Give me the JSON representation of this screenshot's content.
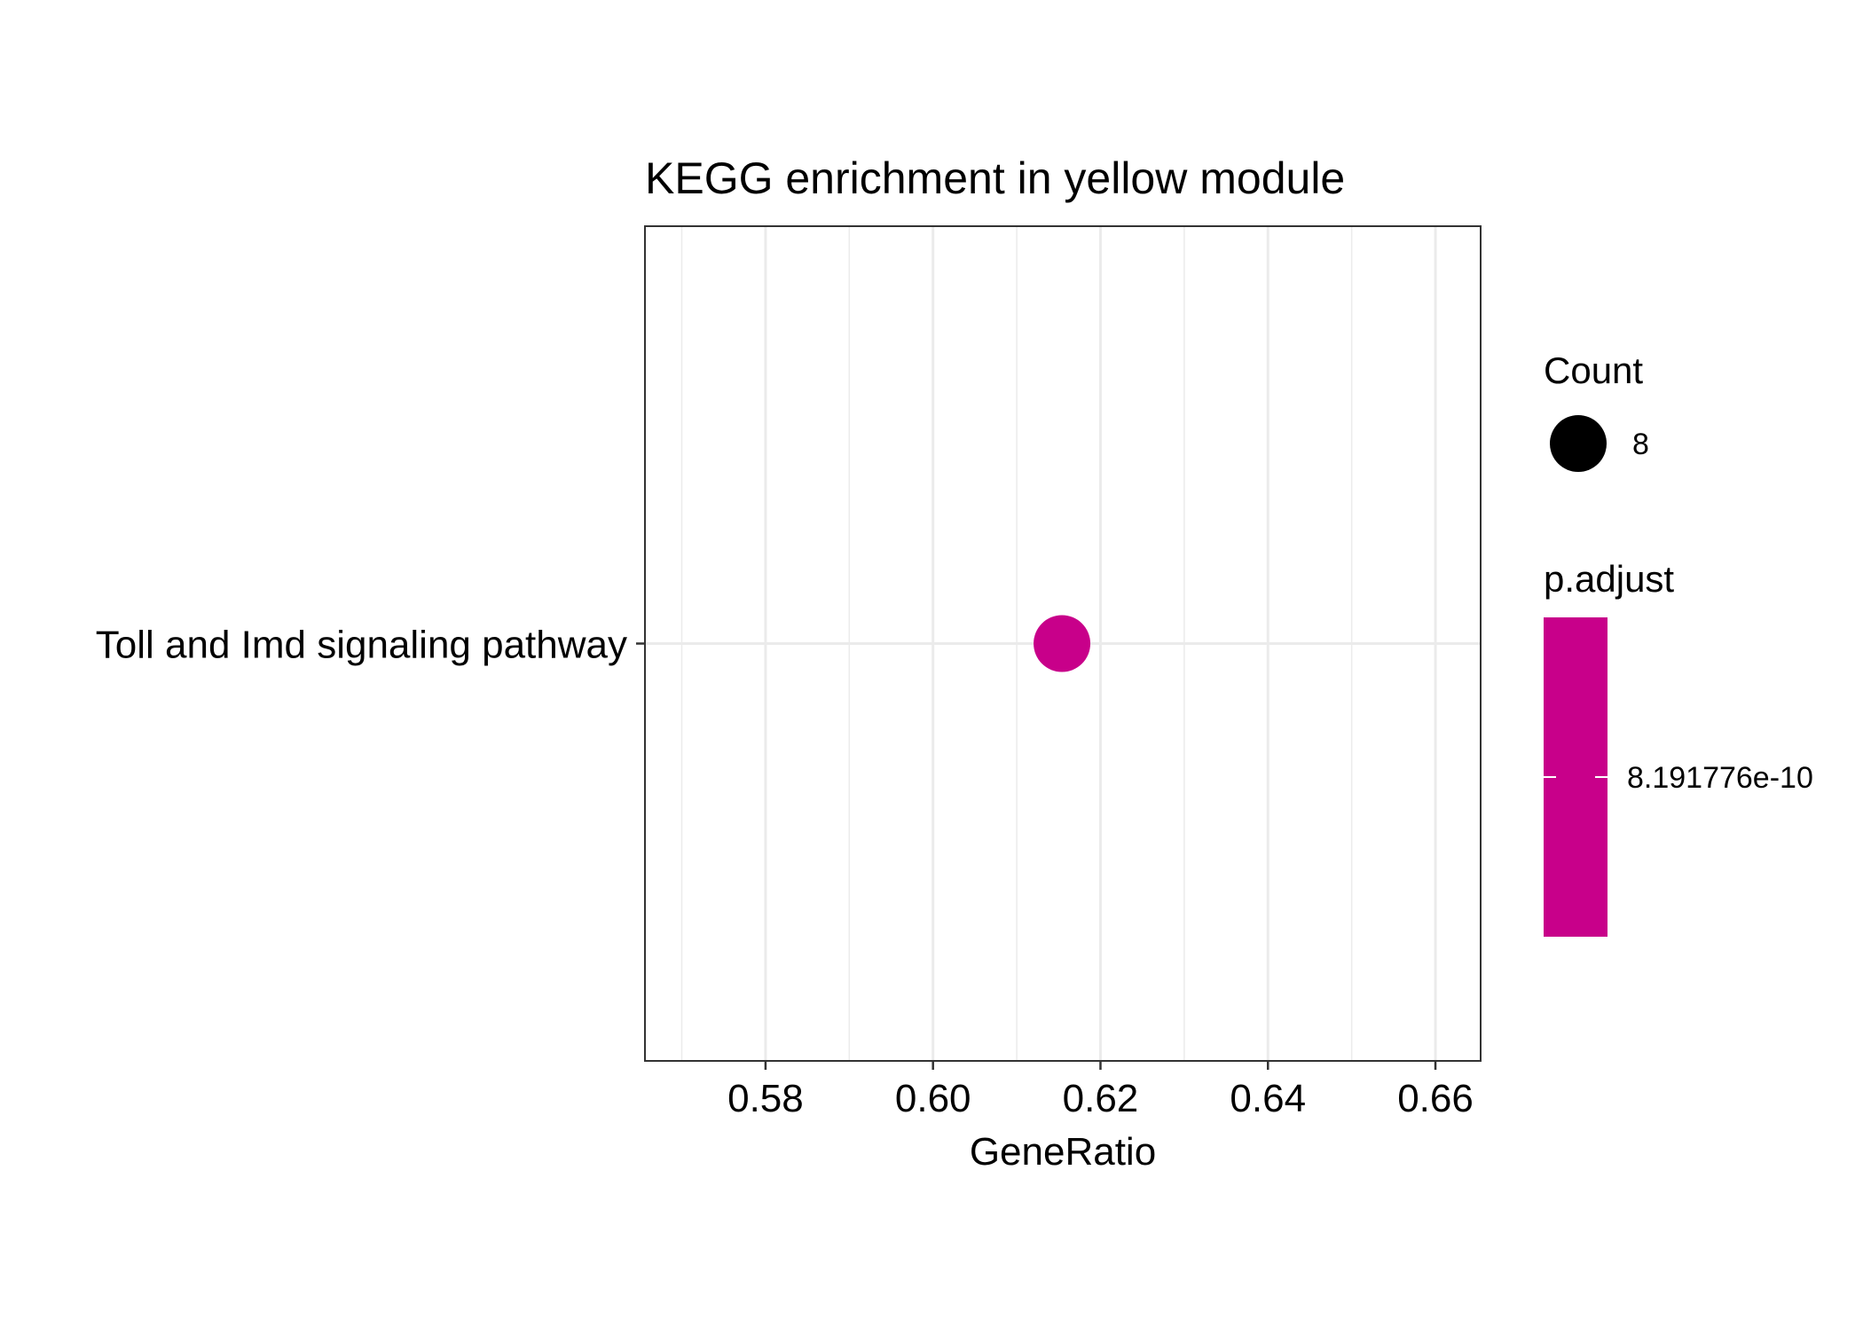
{
  "chart_data": {
    "type": "scatter",
    "title": "KEGG enrichment in yellow module",
    "xlabel": "GeneRatio",
    "ylabel": "",
    "categories": [
      "Toll and Imd signaling pathway"
    ],
    "xlim": [
      0.5656,
      0.6654
    ],
    "xticks": [
      0.58,
      0.6,
      0.62,
      0.64,
      0.66
    ],
    "xtick_labels": [
      "0.58",
      "0.60",
      "0.62",
      "0.64",
      "0.66"
    ],
    "grid": true,
    "points": [
      {
        "category": "Toll and Imd signaling pathway",
        "x": 0.6154,
        "count": 8,
        "p_adjust": 8.191776e-10
      }
    ],
    "legend_position": "right",
    "legend": {
      "size_title": "Count",
      "size_labels": [
        "8"
      ],
      "color_title": "p.adjust",
      "color_labels": [
        "8.191776e-10"
      ]
    },
    "colors": {
      "point": "#C8008A",
      "colorbar": "#C8008A",
      "grid": "#EBEBEB",
      "frame": "#333333"
    }
  }
}
